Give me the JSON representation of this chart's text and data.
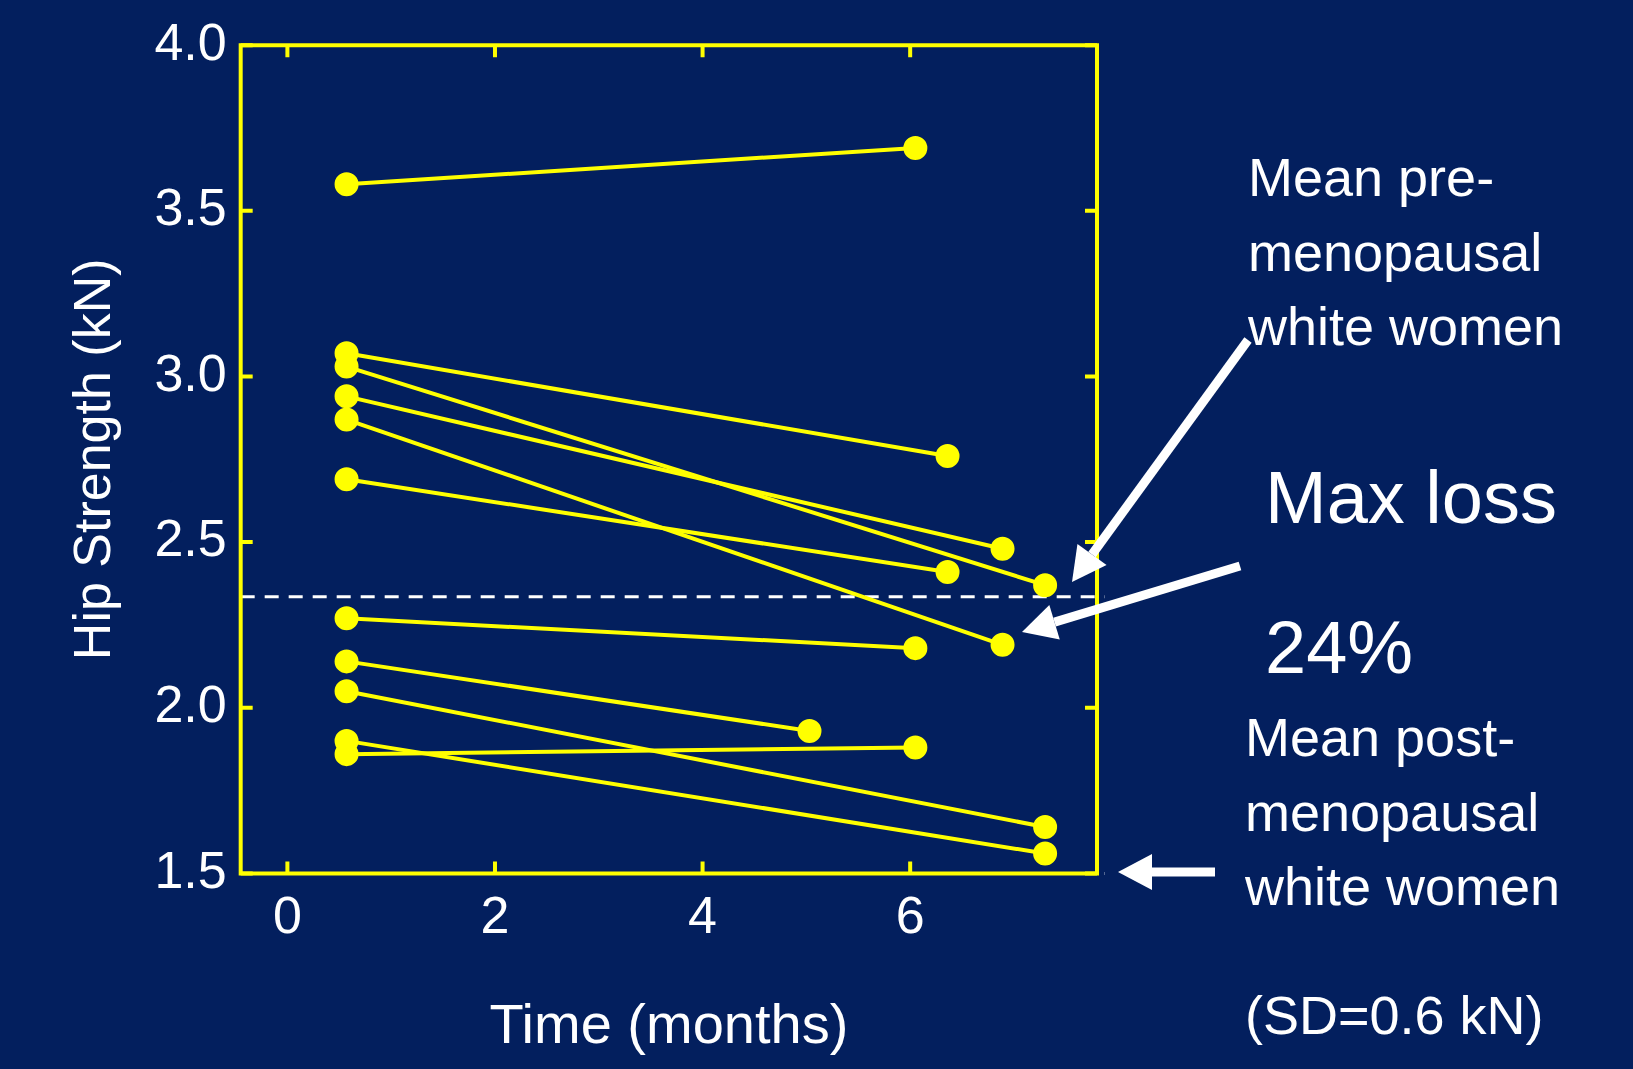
{
  "chart_data": {
    "type": "line",
    "xlabel": "Time (months)",
    "ylabel": "Hip Strength (kN)",
    "xlim": [
      -0.45,
      7.8
    ],
    "xticks": [
      0,
      2,
      4,
      6
    ],
    "ylim": [
      1.5,
      4.0
    ],
    "yticks": [
      1.5,
      {
        "value": 2,
        "label": "2.0"
      },
      2.5,
      {
        "value": 3,
        "label": "3.0"
      },
      3.5,
      {
        "value": 4,
        "label": "4.0"
      }
    ],
    "grid": false,
    "legend": false,
    "marker": "circle",
    "line_style": "solid",
    "series": [
      {
        "color": "#ffff00",
        "x": [
          0.57,
          6.05
        ],
        "values": [
          3.58,
          3.69
        ]
      },
      {
        "color": "#ffff00",
        "x": [
          0.57,
          6.36
        ],
        "values": [
          3.07,
          2.76
        ]
      },
      {
        "color": "#ffff00",
        "x": [
          0.57,
          7.3
        ],
        "values": [
          3.03,
          2.37
        ]
      },
      {
        "color": "#ffff00",
        "x": [
          0.57,
          6.89
        ],
        "values": [
          2.94,
          2.48
        ]
      },
      {
        "color": "#ffff00",
        "x": [
          0.57,
          6.89
        ],
        "values": [
          2.87,
          2.19
        ]
      },
      {
        "color": "#ffff00",
        "x": [
          0.57,
          6.36
        ],
        "values": [
          2.69,
          2.41
        ]
      },
      {
        "color": "#ffff00",
        "x": [
          0.57,
          6.05
        ],
        "values": [
          2.27,
          2.18
        ]
      },
      {
        "color": "#ffff00",
        "x": [
          0.57,
          5.03
        ],
        "values": [
          2.14,
          1.93
        ]
      },
      {
        "color": "#ffff00",
        "x": [
          0.57,
          7.3
        ],
        "values": [
          2.05,
          1.64
        ]
      },
      {
        "color": "#ffff00",
        "x": [
          0.57,
          7.3
        ],
        "values": [
          1.9,
          1.56
        ]
      },
      {
        "color": "#ffff00",
        "x": [
          0.57,
          6.05
        ],
        "values": [
          1.86,
          1.88
        ]
      }
    ],
    "ref_lines": [
      {
        "axis": "y",
        "value": 2.335,
        "color": "#ffffff",
        "line_style": "dashed"
      },
      {
        "axis": "y",
        "value": 1.5,
        "color": "#ffffff",
        "line_style": "dashed"
      }
    ],
    "annotations": [
      "Mean pre-menopausal white women",
      "Max loss",
      "24%",
      "Mean post-menopausal white women",
      "(SD=0.6 kN)"
    ]
  }
}
